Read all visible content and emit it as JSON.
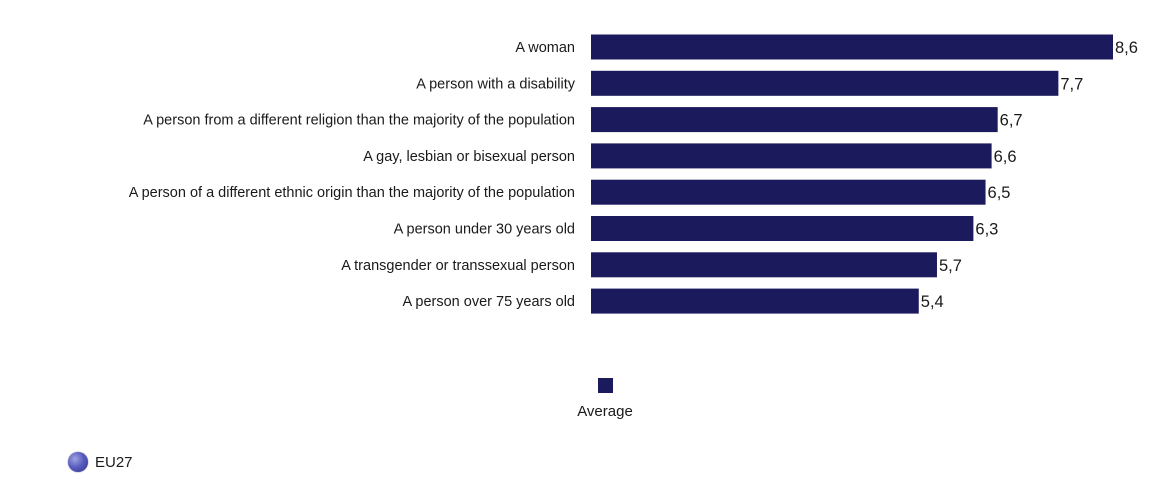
{
  "chart_data": {
    "type": "bar",
    "orientation": "horizontal",
    "categories": [
      "A woman",
      "A person with a disability",
      "A person from a different religion than the majority of the population",
      "A gay, lesbian or bisexual person",
      "A person of a different ethnic origin than the majority of the population",
      "A person under 30 years old",
      "A transgender or transsexual person",
      "A person over 75 years old"
    ],
    "values": [
      8.6,
      7.7,
      6.7,
      6.6,
      6.5,
      6.3,
      5.7,
      5.4
    ],
    "value_labels": [
      "8,6",
      "7,7",
      "6,7",
      "6,6",
      "6,5",
      "6,3",
      "5,7",
      "5,4"
    ],
    "series": [
      {
        "name": "Average",
        "values": [
          8.6,
          7.7,
          6.7,
          6.6,
          6.5,
          6.3,
          5.7,
          5.4
        ]
      }
    ],
    "title": "",
    "xlabel": "",
    "ylabel": "",
    "xlim": [
      0,
      8.6
    ],
    "grid": false,
    "legend_position": "bottom-center",
    "bar_color": "#1b1a5c"
  },
  "legend": {
    "label": "Average",
    "color": "#1b1a5c"
  },
  "region": {
    "label": "EU27",
    "icon": "eu-globe-icon"
  }
}
